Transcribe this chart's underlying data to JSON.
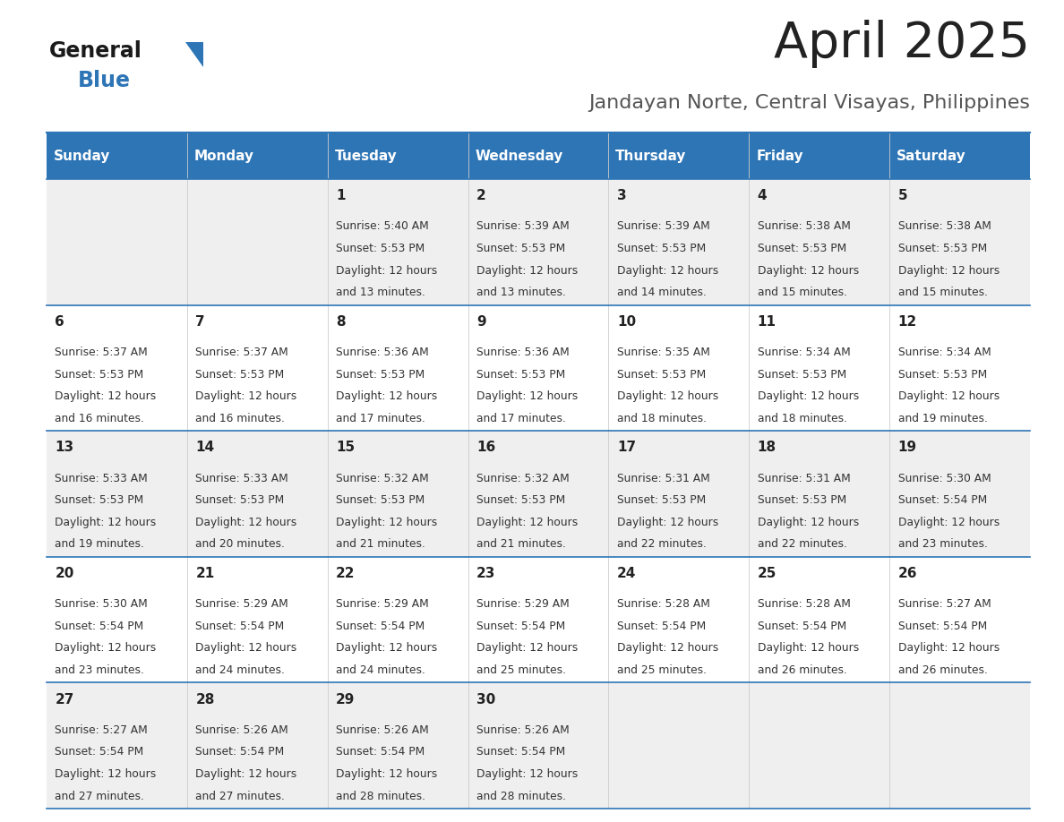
{
  "title": "April 2025",
  "subtitle": "Jandayan Norte, Central Visayas, Philippines",
  "days_of_week": [
    "Sunday",
    "Monday",
    "Tuesday",
    "Wednesday",
    "Thursday",
    "Friday",
    "Saturday"
  ],
  "header_bg": "#2E75B6",
  "header_text": "#FFFFFF",
  "row_bg_even": "#EFEFEF",
  "row_bg_odd": "#FFFFFF",
  "cell_text": "#222222",
  "border_color": "#2E75B6",
  "title_color": "#222222",
  "subtitle_color": "#555555",
  "calendar_data": [
    {
      "day": 1,
      "col": 2,
      "row": 0,
      "sunrise": "5:40 AM",
      "sunset": "5:53 PM",
      "daylight": "12 hours and 13 minutes."
    },
    {
      "day": 2,
      "col": 3,
      "row": 0,
      "sunrise": "5:39 AM",
      "sunset": "5:53 PM",
      "daylight": "12 hours and 13 minutes."
    },
    {
      "day": 3,
      "col": 4,
      "row": 0,
      "sunrise": "5:39 AM",
      "sunset": "5:53 PM",
      "daylight": "12 hours and 14 minutes."
    },
    {
      "day": 4,
      "col": 5,
      "row": 0,
      "sunrise": "5:38 AM",
      "sunset": "5:53 PM",
      "daylight": "12 hours and 15 minutes."
    },
    {
      "day": 5,
      "col": 6,
      "row": 0,
      "sunrise": "5:38 AM",
      "sunset": "5:53 PM",
      "daylight": "12 hours and 15 minutes."
    },
    {
      "day": 6,
      "col": 0,
      "row": 1,
      "sunrise": "5:37 AM",
      "sunset": "5:53 PM",
      "daylight": "12 hours and 16 minutes."
    },
    {
      "day": 7,
      "col": 1,
      "row": 1,
      "sunrise": "5:37 AM",
      "sunset": "5:53 PM",
      "daylight": "12 hours and 16 minutes."
    },
    {
      "day": 8,
      "col": 2,
      "row": 1,
      "sunrise": "5:36 AM",
      "sunset": "5:53 PM",
      "daylight": "12 hours and 17 minutes."
    },
    {
      "day": 9,
      "col": 3,
      "row": 1,
      "sunrise": "5:36 AM",
      "sunset": "5:53 PM",
      "daylight": "12 hours and 17 minutes."
    },
    {
      "day": 10,
      "col": 4,
      "row": 1,
      "sunrise": "5:35 AM",
      "sunset": "5:53 PM",
      "daylight": "12 hours and 18 minutes."
    },
    {
      "day": 11,
      "col": 5,
      "row": 1,
      "sunrise": "5:34 AM",
      "sunset": "5:53 PM",
      "daylight": "12 hours and 18 minutes."
    },
    {
      "day": 12,
      "col": 6,
      "row": 1,
      "sunrise": "5:34 AM",
      "sunset": "5:53 PM",
      "daylight": "12 hours and 19 minutes."
    },
    {
      "day": 13,
      "col": 0,
      "row": 2,
      "sunrise": "5:33 AM",
      "sunset": "5:53 PM",
      "daylight": "12 hours and 19 minutes."
    },
    {
      "day": 14,
      "col": 1,
      "row": 2,
      "sunrise": "5:33 AM",
      "sunset": "5:53 PM",
      "daylight": "12 hours and 20 minutes."
    },
    {
      "day": 15,
      "col": 2,
      "row": 2,
      "sunrise": "5:32 AM",
      "sunset": "5:53 PM",
      "daylight": "12 hours and 21 minutes."
    },
    {
      "day": 16,
      "col": 3,
      "row": 2,
      "sunrise": "5:32 AM",
      "sunset": "5:53 PM",
      "daylight": "12 hours and 21 minutes."
    },
    {
      "day": 17,
      "col": 4,
      "row": 2,
      "sunrise": "5:31 AM",
      "sunset": "5:53 PM",
      "daylight": "12 hours and 22 minutes."
    },
    {
      "day": 18,
      "col": 5,
      "row": 2,
      "sunrise": "5:31 AM",
      "sunset": "5:53 PM",
      "daylight": "12 hours and 22 minutes."
    },
    {
      "day": 19,
      "col": 6,
      "row": 2,
      "sunrise": "5:30 AM",
      "sunset": "5:54 PM",
      "daylight": "12 hours and 23 minutes."
    },
    {
      "day": 20,
      "col": 0,
      "row": 3,
      "sunrise": "5:30 AM",
      "sunset": "5:54 PM",
      "daylight": "12 hours and 23 minutes."
    },
    {
      "day": 21,
      "col": 1,
      "row": 3,
      "sunrise": "5:29 AM",
      "sunset": "5:54 PM",
      "daylight": "12 hours and 24 minutes."
    },
    {
      "day": 22,
      "col": 2,
      "row": 3,
      "sunrise": "5:29 AM",
      "sunset": "5:54 PM",
      "daylight": "12 hours and 24 minutes."
    },
    {
      "day": 23,
      "col": 3,
      "row": 3,
      "sunrise": "5:29 AM",
      "sunset": "5:54 PM",
      "daylight": "12 hours and 25 minutes."
    },
    {
      "day": 24,
      "col": 4,
      "row": 3,
      "sunrise": "5:28 AM",
      "sunset": "5:54 PM",
      "daylight": "12 hours and 25 minutes."
    },
    {
      "day": 25,
      "col": 5,
      "row": 3,
      "sunrise": "5:28 AM",
      "sunset": "5:54 PM",
      "daylight": "12 hours and 26 minutes."
    },
    {
      "day": 26,
      "col": 6,
      "row": 3,
      "sunrise": "5:27 AM",
      "sunset": "5:54 PM",
      "daylight": "12 hours and 26 minutes."
    },
    {
      "day": 27,
      "col": 0,
      "row": 4,
      "sunrise": "5:27 AM",
      "sunset": "5:54 PM",
      "daylight": "12 hours and 27 minutes."
    },
    {
      "day": 28,
      "col": 1,
      "row": 4,
      "sunrise": "5:26 AM",
      "sunset": "5:54 PM",
      "daylight": "12 hours and 27 minutes."
    },
    {
      "day": 29,
      "col": 2,
      "row": 4,
      "sunrise": "5:26 AM",
      "sunset": "5:54 PM",
      "daylight": "12 hours and 28 minutes."
    },
    {
      "day": 30,
      "col": 3,
      "row": 4,
      "sunrise": "5:26 AM",
      "sunset": "5:54 PM",
      "daylight": "12 hours and 28 minutes."
    }
  ]
}
